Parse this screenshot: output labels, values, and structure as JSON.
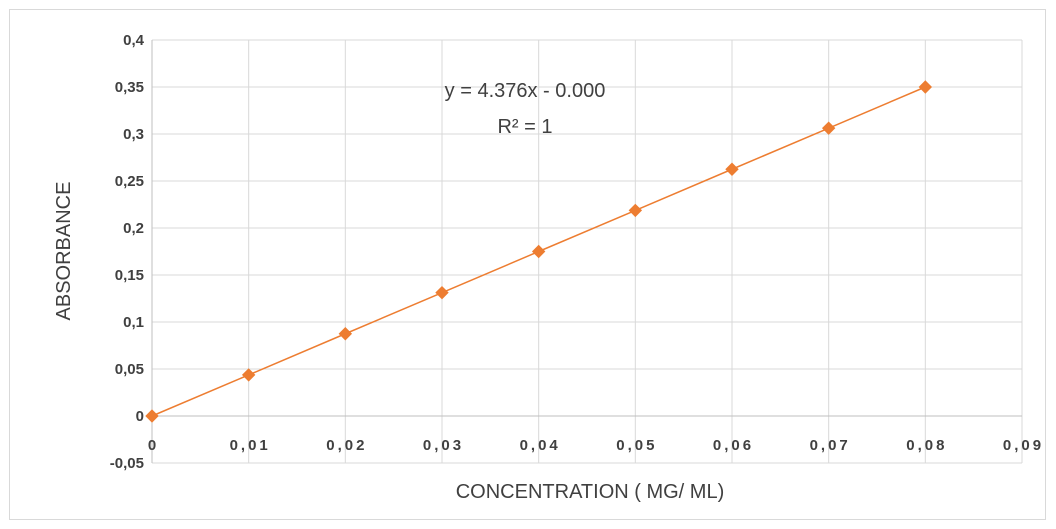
{
  "chart_data": {
    "type": "scatter",
    "title": "",
    "xlabel": "CONCENTRATION ( MG/ ML)",
    "ylabel": "ABSORBANCE",
    "xlim": [
      0,
      0.09
    ],
    "ylim": [
      -0.05,
      0.4
    ],
    "x_ticks": [
      "0",
      "0,01",
      "0,02",
      "0,03",
      "0,04",
      "0,05",
      "0,06",
      "0,07",
      "0,08",
      "0,09"
    ],
    "y_ticks": [
      "-0,05",
      "0",
      "0,05",
      "0,1",
      "0,15",
      "0,2",
      "0,25",
      "0,3",
      "0,35",
      "0,4"
    ],
    "series": [
      {
        "x": [
          0,
          0.01,
          0.02,
          0.03,
          0.04,
          0.05,
          0.06,
          0.07,
          0.08
        ],
        "y": [
          0,
          0.0437,
          0.0875,
          0.1312,
          0.175,
          0.2187,
          0.2625,
          0.3062,
          0.35
        ],
        "marker": "diamond",
        "color": "#ED7D31"
      }
    ],
    "trendline": {
      "type": "linear",
      "color": "#ED7D31"
    },
    "annotations": {
      "equation": "y = 4.376x - 0.000",
      "r2": "R² = 1"
    },
    "grid": true,
    "legend": "none"
  }
}
